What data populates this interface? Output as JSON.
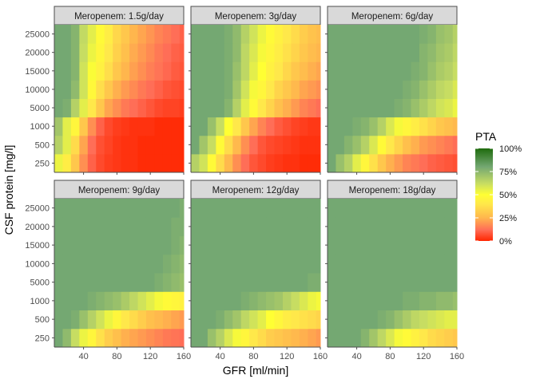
{
  "chart_data": {
    "type": "heatmap",
    "xlabel": "GFR [ml/min]",
    "ylabel": "CSF protein [mg/l]",
    "x_ticks": [
      "40",
      "80",
      "120",
      "160"
    ],
    "x_values": [
      10,
      20,
      30,
      40,
      50,
      60,
      70,
      80,
      90,
      100,
      110,
      120,
      130,
      140,
      150,
      160
    ],
    "xlim": [
      5,
      160
    ],
    "y_categories": [
      "250",
      "500",
      "1000",
      "5000",
      "10000",
      "15000",
      "20000",
      "25000"
    ],
    "y_ticks": [
      "250",
      "500",
      "1000",
      "5000",
      "10000",
      "15000",
      "20000",
      "25000"
    ],
    "value_unit": "percent",
    "colors": {
      "scale": [
        [
          0,
          "#ff2600"
        ],
        [
          0.12,
          "#ff6e57"
        ],
        [
          0.25,
          "#ffb64d"
        ],
        [
          0.4,
          "#ffe84a"
        ],
        [
          0.5,
          "#ffff33"
        ],
        [
          0.62,
          "#c7dd62"
        ],
        [
          0.8,
          "#74a872"
        ],
        [
          1.0,
          "#1e6b0d"
        ]
      ],
      "strip_fill": "#d9d9d9",
      "strip_border": "#4d4d4d",
      "axis": "#4d4d4d"
    },
    "legend": {
      "title": "PTA",
      "labels": [
        "100%",
        "75%",
        "50%",
        "25%",
        "0%"
      ],
      "breaks": [
        100,
        75,
        50,
        25,
        0
      ],
      "position": "right"
    },
    "facets": [
      {
        "title": "Meropenem: 1.5g/day",
        "values": [
          [
            54,
            42,
            30,
            18,
            10,
            6,
            4,
            3,
            2,
            2,
            1,
            1,
            1,
            1,
            1,
            1
          ],
          [
            66,
            56,
            36,
            22,
            12,
            7,
            5,
            3,
            2,
            2,
            1,
            1,
            1,
            1,
            1,
            1
          ],
          [
            70,
            56,
            46,
            30,
            18,
            10,
            6,
            4,
            3,
            2,
            2,
            2,
            1,
            1,
            1,
            1
          ],
          [
            80,
            78,
            66,
            56,
            40,
            30,
            22,
            18,
            14,
            12,
            10,
            8,
            6,
            5,
            5,
            4
          ],
          [
            80,
            80,
            74,
            60,
            47,
            37,
            30,
            24,
            20,
            17,
            14,
            12,
            10,
            8,
            7,
            6
          ],
          [
            80,
            80,
            76,
            60,
            51,
            44,
            37,
            30,
            25,
            21,
            18,
            15,
            13,
            11,
            9,
            8
          ],
          [
            80,
            80,
            76,
            62,
            54,
            46,
            40,
            33,
            28,
            23,
            20,
            17,
            14,
            12,
            10,
            9
          ],
          [
            80,
            80,
            76,
            63,
            56,
            48,
            42,
            35,
            30,
            25,
            22,
            19,
            16,
            14,
            12,
            10
          ]
        ]
      },
      {
        "title": "Meropenem: 3g/day",
        "values": [
          [
            66,
            60,
            48,
            36,
            26,
            18,
            12,
            8,
            6,
            4,
            3,
            2,
            2,
            1,
            1,
            1
          ],
          [
            80,
            70,
            62,
            48,
            36,
            26,
            18,
            12,
            8,
            6,
            5,
            4,
            3,
            2,
            2,
            2
          ],
          [
            80,
            80,
            72,
            62,
            50,
            40,
            30,
            22,
            16,
            12,
            9,
            7,
            5,
            4,
            3,
            3
          ],
          [
            80,
            80,
            80,
            80,
            76,
            66,
            56,
            48,
            40,
            34,
            28,
            24,
            20,
            16,
            14,
            12
          ],
          [
            80,
            80,
            80,
            80,
            78,
            70,
            60,
            52,
            46,
            40,
            34,
            30,
            26,
            22,
            20,
            18
          ],
          [
            80,
            80,
            80,
            80,
            78,
            72,
            64,
            56,
            50,
            44,
            40,
            35,
            30,
            27,
            24,
            22
          ],
          [
            80,
            80,
            80,
            80,
            78,
            74,
            64,
            58,
            52,
            46,
            42,
            38,
            34,
            30,
            27,
            25
          ],
          [
            80,
            80,
            80,
            80,
            78,
            74,
            66,
            60,
            54,
            48,
            44,
            40,
            36,
            32,
            29,
            27
          ]
        ]
      },
      {
        "title": "Meropenem: 6g/day",
        "values": [
          [
            80,
            72,
            66,
            56,
            46,
            38,
            30,
            24,
            20,
            16,
            14,
            12,
            10,
            9,
            8,
            7
          ],
          [
            80,
            80,
            76,
            72,
            66,
            58,
            48,
            40,
            34,
            28,
            24,
            20,
            18,
            16,
            14,
            12
          ],
          [
            80,
            80,
            80,
            78,
            76,
            72,
            66,
            58,
            52,
            46,
            42,
            38,
            34,
            30,
            28,
            26
          ],
          [
            80,
            80,
            80,
            80,
            80,
            80,
            80,
            80,
            78,
            76,
            72,
            68,
            64,
            60,
            58,
            54
          ],
          [
            80,
            80,
            80,
            80,
            80,
            80,
            80,
            80,
            80,
            78,
            76,
            72,
            68,
            64,
            62,
            58
          ],
          [
            80,
            80,
            80,
            80,
            80,
            80,
            80,
            80,
            80,
            80,
            78,
            76,
            72,
            68,
            66,
            62
          ],
          [
            80,
            80,
            80,
            80,
            80,
            80,
            80,
            80,
            80,
            80,
            80,
            76,
            74,
            70,
            68,
            64
          ],
          [
            80,
            80,
            80,
            80,
            80,
            80,
            80,
            80,
            80,
            80,
            80,
            78,
            76,
            72,
            70,
            66
          ]
        ]
      },
      {
        "title": "Meropenem: 9g/day",
        "values": [
          [
            80,
            74,
            62,
            54,
            46,
            38,
            32,
            28,
            24,
            22,
            20,
            18,
            16,
            14,
            13,
            12
          ],
          [
            80,
            80,
            78,
            72,
            66,
            60,
            54,
            46,
            40,
            36,
            32,
            28,
            26,
            24,
            22,
            20
          ],
          [
            80,
            80,
            80,
            80,
            78,
            76,
            74,
            72,
            68,
            64,
            60,
            56,
            52,
            48,
            46,
            44
          ],
          [
            80,
            80,
            80,
            80,
            80,
            80,
            80,
            80,
            80,
            80,
            80,
            80,
            78,
            76,
            74,
            72
          ],
          [
            80,
            80,
            80,
            80,
            80,
            80,
            80,
            80,
            80,
            80,
            80,
            80,
            80,
            78,
            76,
            74
          ],
          [
            80,
            80,
            80,
            80,
            80,
            80,
            80,
            80,
            80,
            80,
            80,
            80,
            80,
            80,
            78,
            76
          ],
          [
            80,
            80,
            80,
            80,
            80,
            80,
            80,
            80,
            80,
            80,
            80,
            80,
            80,
            80,
            78,
            78
          ],
          [
            80,
            80,
            80,
            80,
            80,
            80,
            80,
            80,
            80,
            80,
            80,
            80,
            80,
            80,
            80,
            78
          ]
        ]
      },
      {
        "title": "Meropenem: 12g/day",
        "values": [
          [
            80,
            80,
            72,
            66,
            58,
            52,
            46,
            40,
            36,
            32,
            30,
            28,
            26,
            24,
            22,
            20
          ],
          [
            80,
            80,
            80,
            78,
            74,
            70,
            64,
            60,
            56,
            50,
            46,
            42,
            40,
            38,
            36,
            34
          ],
          [
            80,
            80,
            80,
            80,
            80,
            80,
            78,
            76,
            74,
            72,
            70,
            66,
            62,
            58,
            54,
            52
          ],
          [
            80,
            80,
            80,
            80,
            80,
            80,
            80,
            80,
            80,
            80,
            80,
            80,
            80,
            80,
            78,
            78
          ],
          [
            80,
            80,
            80,
            80,
            80,
            80,
            80,
            80,
            80,
            80,
            80,
            80,
            80,
            80,
            80,
            80
          ],
          [
            80,
            80,
            80,
            80,
            80,
            80,
            80,
            80,
            80,
            80,
            80,
            80,
            80,
            80,
            80,
            80
          ],
          [
            80,
            80,
            80,
            80,
            80,
            80,
            80,
            80,
            80,
            80,
            80,
            80,
            80,
            80,
            80,
            80
          ],
          [
            80,
            80,
            80,
            80,
            80,
            80,
            80,
            80,
            80,
            80,
            80,
            80,
            80,
            80,
            80,
            80
          ]
        ]
      },
      {
        "title": "Meropenem: 18g/day",
        "values": [
          [
            80,
            80,
            80,
            80,
            76,
            70,
            64,
            58,
            52,
            48,
            44,
            40,
            36,
            34,
            32,
            30
          ],
          [
            80,
            80,
            80,
            80,
            80,
            80,
            78,
            76,
            72,
            68,
            64,
            62,
            60,
            58,
            56,
            56
          ],
          [
            80,
            80,
            80,
            80,
            80,
            80,
            80,
            80,
            80,
            78,
            78,
            76,
            76,
            74,
            74,
            72
          ],
          [
            80,
            80,
            80,
            80,
            80,
            80,
            80,
            80,
            80,
            80,
            80,
            80,
            80,
            80,
            80,
            80
          ],
          [
            80,
            80,
            80,
            80,
            80,
            80,
            80,
            80,
            80,
            80,
            80,
            80,
            80,
            80,
            80,
            80
          ],
          [
            80,
            80,
            80,
            80,
            80,
            80,
            80,
            80,
            80,
            80,
            80,
            80,
            80,
            80,
            80,
            80
          ],
          [
            80,
            80,
            80,
            80,
            80,
            80,
            80,
            80,
            80,
            80,
            80,
            80,
            80,
            80,
            80,
            80
          ],
          [
            80,
            80,
            80,
            80,
            80,
            80,
            80,
            80,
            80,
            80,
            80,
            80,
            80,
            80,
            80,
            80
          ]
        ]
      }
    ]
  }
}
